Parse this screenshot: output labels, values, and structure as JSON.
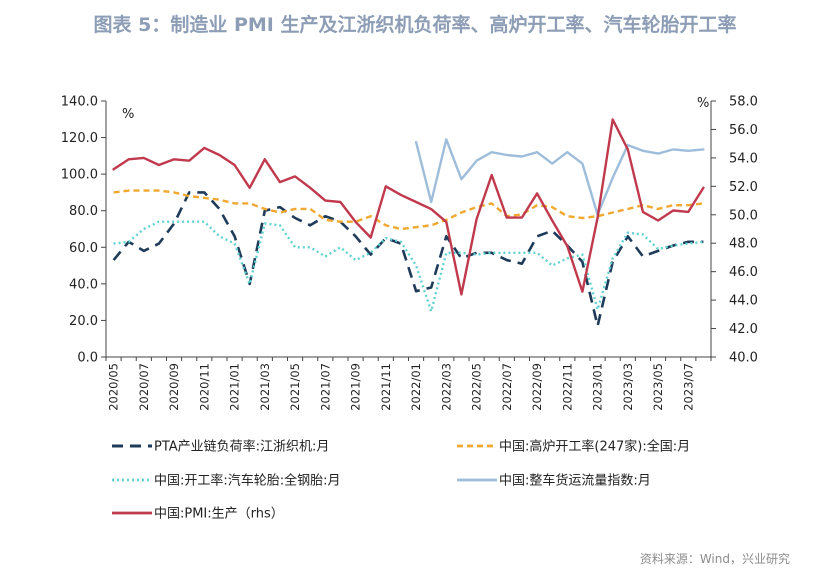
{
  "title": "图表 5：制造业 PMI 生产及江浙织机负荷率、高炉开工率、汽车轮胎开工率",
  "source": "资料来源：Wind，兴业研究",
  "colors": {
    "pta": "#1f3b5a",
    "blast": "#f0a830",
    "tire": "#5fd3d0",
    "freight": "#9ebddb",
    "pmi": "#c0394d"
  },
  "chart_data": {
    "type": "line",
    "x": [
      "2020/05",
      "2020/06",
      "2020/07",
      "2020/08",
      "2020/09",
      "2020/10",
      "2020/11",
      "2020/12",
      "2021/01",
      "2021/02",
      "2021/03",
      "2021/04",
      "2021/05",
      "2021/06",
      "2021/07",
      "2021/08",
      "2021/09",
      "2021/10",
      "2021/11",
      "2021/12",
      "2022/01",
      "2022/02",
      "2022/03",
      "2022/04",
      "2022/05",
      "2022/06",
      "2022/07",
      "2022/08",
      "2022/09",
      "2022/10",
      "2022/11",
      "2022/12",
      "2023/01",
      "2023/02",
      "2023/03",
      "2023/04",
      "2023/05",
      "2023/06",
      "2023/07",
      "2023/08"
    ],
    "x_tick_labels": [
      "2020/05",
      "2020/07",
      "2020/09",
      "2020/11",
      "2021/01",
      "2021/03",
      "2021/05",
      "2021/07",
      "2021/09",
      "2021/11",
      "2022/01",
      "2022/03",
      "2022/05",
      "2022/07",
      "2022/09",
      "2022/11",
      "2023/01",
      "2023/03",
      "2023/05",
      "2023/07"
    ],
    "y_left": {
      "min": 0,
      "max": 140,
      "step": 20,
      "unit": "%",
      "tick_labels": [
        "0.0",
        "20.0",
        "40.0",
        "60.0",
        "80.0",
        "100.0",
        "120.0",
        "140.0"
      ]
    },
    "y_right": {
      "min": 40,
      "max": 58,
      "step": 2,
      "unit": "%",
      "tick_labels": [
        "40.0",
        "42.0",
        "44.0",
        "46.0",
        "48.0",
        "50.0",
        "52.0",
        "54.0",
        "56.0",
        "58.0"
      ]
    },
    "legend_position": "bottom",
    "series": [
      {
        "key": "pta",
        "name": "PTA产业链负荷率:江浙织机:月",
        "axis": "left",
        "style": "dashed",
        "values": [
          53,
          63,
          58,
          62,
          73,
          90,
          90,
          81,
          66,
          40,
          80,
          82,
          76,
          72,
          77,
          74,
          66,
          56,
          65,
          62,
          36,
          38,
          66,
          54,
          57,
          57,
          53,
          51,
          66,
          69,
          61,
          52,
          17,
          52,
          66,
          55,
          58,
          61,
          63,
          63
        ]
      },
      {
        "key": "blast",
        "name": "中国:高炉开工率(247家):全国:月",
        "axis": "left",
        "style": "dashed-fine",
        "values": [
          90,
          91,
          91,
          91,
          90,
          88,
          87,
          86,
          84,
          84,
          81,
          79,
          81,
          81,
          75,
          74,
          74,
          77,
          72,
          70,
          71,
          72,
          75,
          79,
          82,
          84,
          77,
          78,
          83,
          82,
          77,
          76,
          77,
          79,
          81,
          83,
          81,
          83,
          83,
          84
        ]
      },
      {
        "key": "tire",
        "name": "中国:开工率:汽车轮胎:全钢胎:月",
        "axis": "left",
        "style": "dotted",
        "values": [
          62,
          63,
          70,
          74,
          74,
          74,
          74,
          66,
          62,
          40,
          73,
          72,
          60,
          60,
          55,
          60,
          53,
          57,
          65,
          63,
          50,
          25,
          57,
          57,
          56,
          57,
          57,
          57,
          57,
          50,
          54,
          56,
          26,
          54,
          68,
          67,
          59,
          61,
          62,
          63
        ]
      },
      {
        "key": "freight",
        "name": "中国:整车货运流量指数:月",
        "axis": "right",
        "style": "solid",
        "values": [
          null,
          null,
          null,
          null,
          null,
          null,
          null,
          null,
          null,
          null,
          null,
          null,
          null,
          null,
          null,
          null,
          null,
          null,
          null,
          null,
          55.1,
          50.9,
          55.3,
          52.5,
          53.8,
          54.4,
          54.2,
          54.1,
          54.4,
          53.6,
          54.4,
          53.6,
          50.0,
          52.6,
          54.9,
          54.5,
          54.3,
          54.6,
          54.5,
          54.6
        ]
      },
      {
        "key": "pmi",
        "name": "中国:PMI:生产（rhs）",
        "axis": "right",
        "style": "solid",
        "values": [
          53.2,
          53.9,
          54.0,
          53.5,
          53.9,
          53.8,
          54.7,
          54.2,
          53.5,
          51.9,
          53.9,
          52.3,
          52.7,
          51.9,
          51.0,
          50.9,
          49.5,
          48.4,
          52.0,
          51.4,
          50.9,
          50.4,
          49.5,
          44.4,
          49.7,
          52.8,
          49.8,
          49.8,
          51.5,
          49.6,
          47.8,
          44.6,
          49.8,
          56.7,
          54.6,
          50.2,
          49.6,
          50.3,
          50.2,
          51.9
        ]
      }
    ]
  }
}
